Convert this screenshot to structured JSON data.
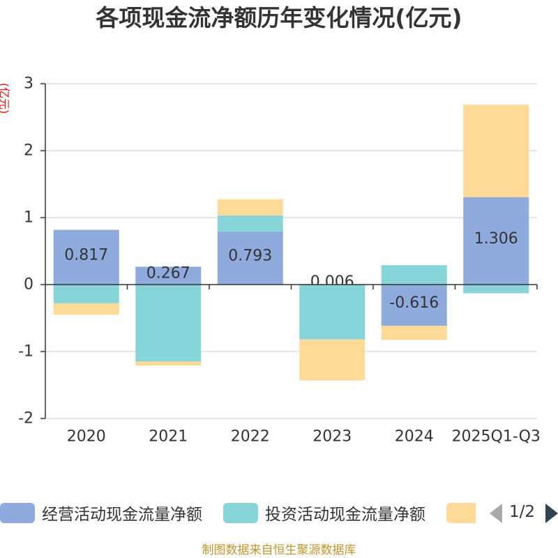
{
  "chart_data": {
    "type": "bar",
    "stacked": true,
    "title": "各项现金流净额历年变化情况(亿元)",
    "ylabel": "(亿元)",
    "xlabel": "",
    "categories": [
      "2020",
      "2021",
      "2022",
      "2023",
      "2024",
      "2025Q1-Q3"
    ],
    "ylim": [
      -2,
      3
    ],
    "yticks": [
      -2,
      -1,
      0,
      1,
      2,
      3
    ],
    "grid": true,
    "legend_position": "bottom",
    "series": [
      {
        "name": "经营活动现金流量净额",
        "color": "#8faadc",
        "values": [
          0.817,
          0.267,
          0.793,
          0.006,
          -0.616,
          1.306
        ],
        "labels": [
          "0.817",
          "0.267",
          "0.793",
          "0.006",
          "-0.616",
          "1.306"
        ]
      },
      {
        "name": "投资活动现金流量净额",
        "color": "#88d5d9",
        "values": [
          -0.28,
          -1.15,
          0.24,
          -0.82,
          0.29,
          -0.13
        ]
      },
      {
        "name": "",
        "color": "#ffd998",
        "values": [
          -0.17,
          -0.06,
          0.24,
          -0.61,
          -0.21,
          1.38
        ]
      }
    ]
  },
  "legend": {
    "page_indicator": "1/2"
  },
  "footer": "制图数据来自恒生聚源数据库"
}
